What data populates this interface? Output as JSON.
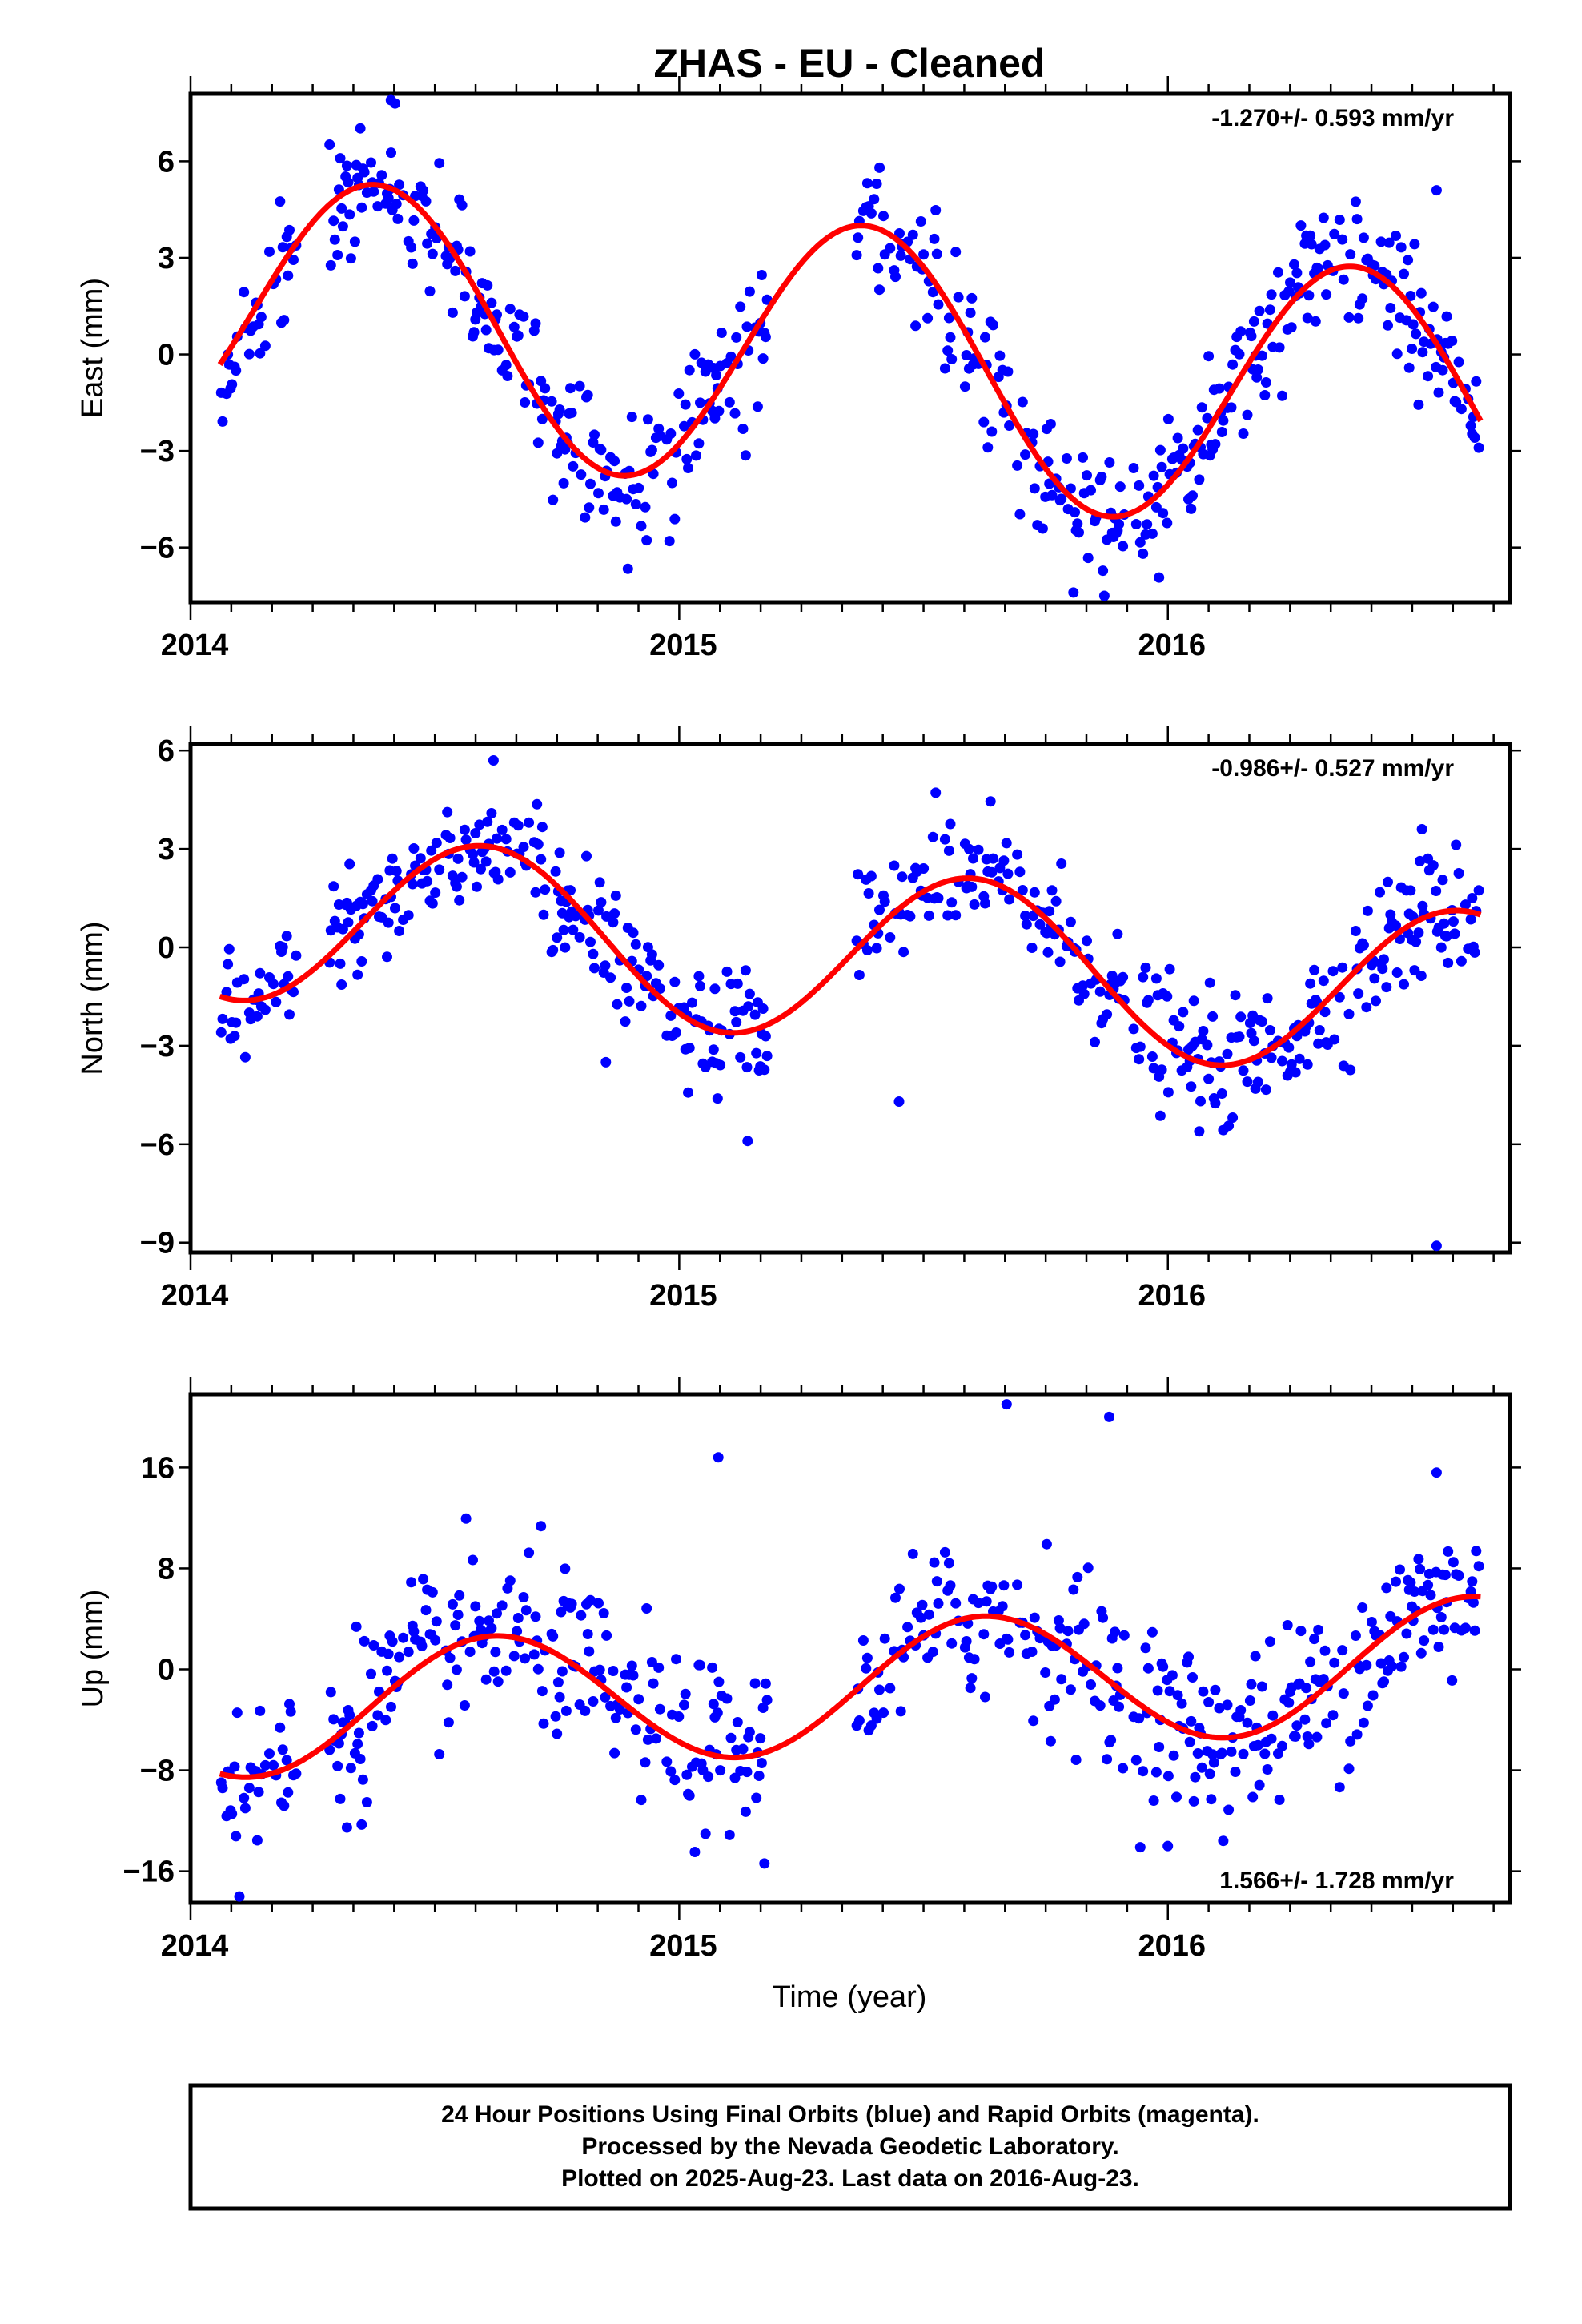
{
  "chart_data": {
    "type": "scatter",
    "title": "ZHAS  - EU - Cleaned",
    "xlabel": "Time (year)",
    "xlim": [
      2014.0,
      2016.7
    ],
    "x_ticks": [
      2014,
      2015,
      2016
    ],
    "x_tick_labels": [
      "2014",
      "2015",
      "2016"
    ],
    "point_color": "#0000ff",
    "model_color": "#ff0000",
    "panels": [
      {
        "name": "east",
        "ylabel": "East (mm)",
        "ylim": [
          -7.7,
          8.1
        ],
        "y_ticks": [
          6,
          3,
          0,
          -3,
          -6
        ],
        "y_tick_labels": [
          "6",
          "3",
          "0",
          "−3",
          "−6"
        ],
        "rate": "-1.270+/- 0.593 mm/yr",
        "rate_position": "top-right",
        "model": {
          "mean": -0.1,
          "trend": -1.27,
          "amp": 4.2,
          "peak": 0.38
        },
        "noise": 1.0,
        "outliers": [
          [
            2014.98,
            -5.8
          ],
          [
            2015.87,
            -7.5
          ],
          [
            2016.55,
            5.1
          ],
          [
            2014.41,
            7.9
          ],
          [
            2015.41,
            5.8
          ]
        ]
      },
      {
        "name": "north",
        "ylabel": "North (mm)",
        "ylim": [
          -9.3,
          6.2
        ],
        "y_ticks": [
          6,
          3,
          0,
          -3,
          -6,
          -9
        ],
        "y_tick_labels": [
          "6",
          "3",
          "0",
          "−3",
          "−6",
          "−9"
        ],
        "rate": "-0.986+/- 0.527 mm/yr",
        "rate_position": "top-right",
        "model": {
          "mean": -0.2,
          "trend": -0.986,
          "amp": 2.6,
          "peak": 0.6
        },
        "noise": 0.95,
        "outliers": [
          [
            2016.55,
            -9.1
          ],
          [
            2015.45,
            -4.7
          ],
          [
            2014.85,
            -3.5
          ],
          [
            2015.14,
            -5.9
          ],
          [
            2016.52,
            3.6
          ],
          [
            2014.62,
            5.7
          ]
        ]
      },
      {
        "name": "up",
        "ylabel": "Up (mm)",
        "ylim": [
          -18.5,
          21.8
        ],
        "y_ticks": [
          16,
          8,
          0,
          -8,
          -16
        ],
        "y_tick_labels": [
          "16",
          "8",
          "0",
          "−8",
          "−16"
        ],
        "rate": "1.566+/- 1.728 mm/yr",
        "rate_position": "bottom-right",
        "model": {
          "mean": -1.5,
          "trend": 1.566,
          "amp": 5.2,
          "peak": 0.62
        },
        "noise": 3.4,
        "outliers": [
          [
            2015.67,
            21.0
          ],
          [
            2015.88,
            20.0
          ],
          [
            2015.08,
            16.8
          ],
          [
            2014.1,
            -18.0
          ],
          [
            2016.55,
            15.6
          ],
          [
            2016.0,
            -14.0
          ]
        ]
      }
    ]
  },
  "caption": {
    "line1": "24 Hour Positions Using Final Orbits (blue) and Rapid Orbits (magenta).",
    "line2": "Processed by the Nevada Geodetic Laboratory.",
    "line3": "Plotted on 2025-Aug-23. Last data on 2016-Aug-23."
  }
}
